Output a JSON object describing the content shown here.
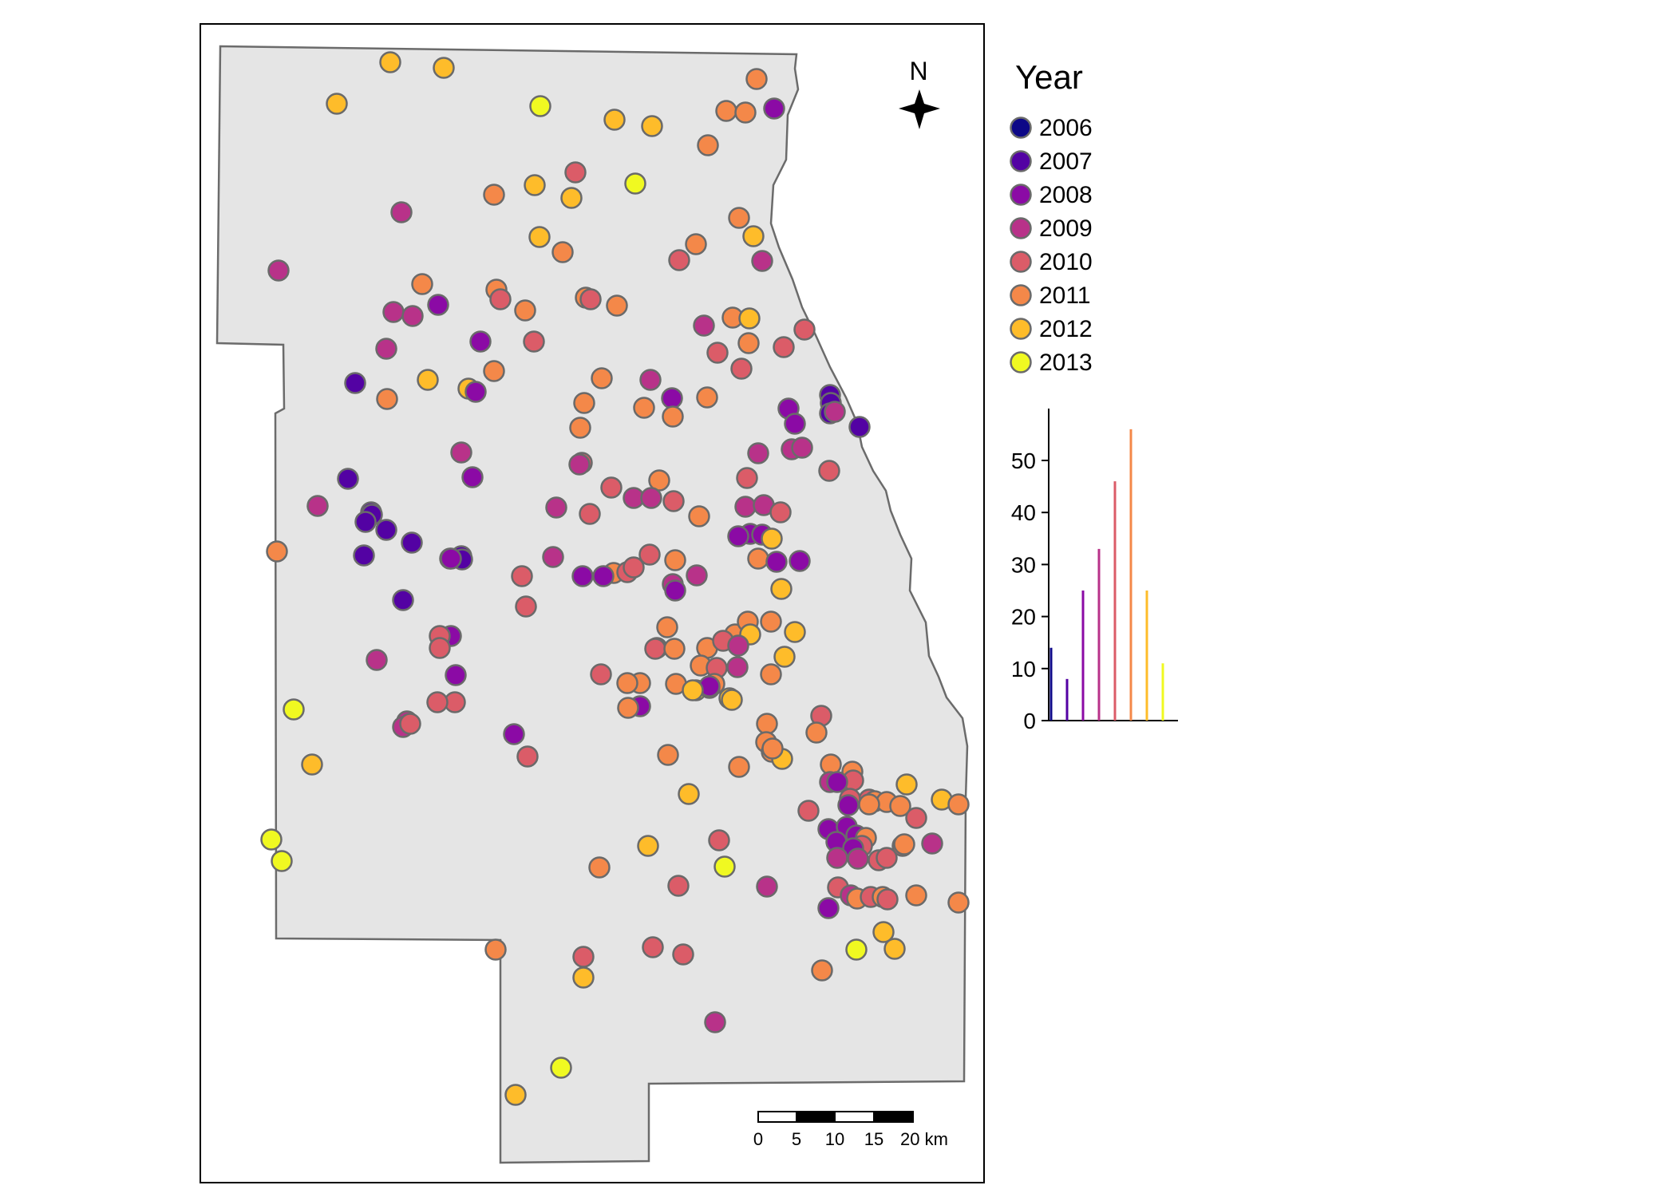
{
  "legend": {
    "title": "Year",
    "items": [
      {
        "year": "2006",
        "color": "#0d0887"
      },
      {
        "year": "2007",
        "color": "#5302a3"
      },
      {
        "year": "2008",
        "color": "#8b0aa5"
      },
      {
        "year": "2009",
        "color": "#b83289"
      },
      {
        "year": "2010",
        "color": "#db5c68"
      },
      {
        "year": "2011",
        "color": "#f48849"
      },
      {
        "year": "2012",
        "color": "#febc2a"
      },
      {
        "year": "2013",
        "color": "#f0f921"
      }
    ]
  },
  "north_arrow": {
    "label": "N"
  },
  "scale_bar": {
    "labels": [
      "0",
      "5",
      "10",
      "15",
      "20 km"
    ]
  },
  "map_style": {
    "land_fill": "#e5e5e5",
    "border_color": "#6b6b6b"
  },
  "chart_data": {
    "type": "bar",
    "categories": [
      "2006",
      "2007",
      "2008",
      "2009",
      "2010",
      "2011",
      "2012",
      "2013"
    ],
    "values": [
      14,
      8,
      25,
      33,
      46,
      56,
      25,
      11
    ],
    "yticks": [
      0,
      10,
      20,
      30,
      40,
      50
    ],
    "ylim": [
      0,
      60
    ]
  }
}
